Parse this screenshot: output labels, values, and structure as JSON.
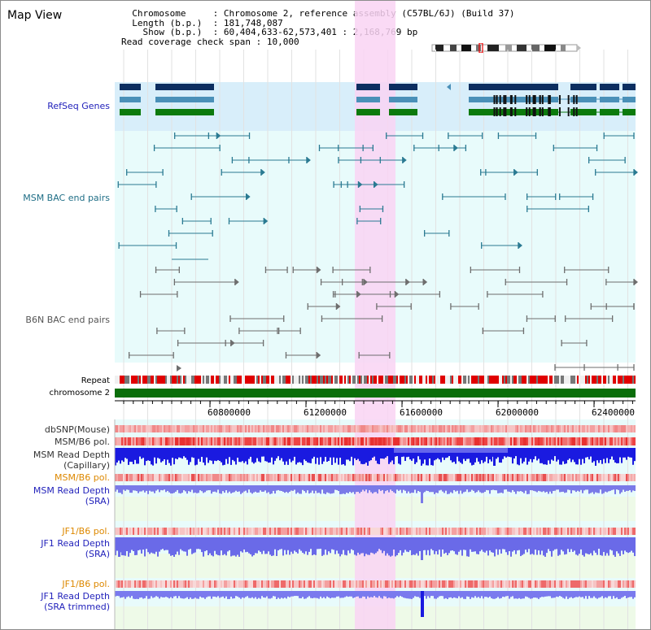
{
  "page": {
    "title": "Map View"
  },
  "info": {
    "chromosome_label": "Chromosome",
    "chromosome_value": "Chromosome 2, reference assembly (C57BL/6J) (Build 37)",
    "length_label": "Length (b.p.)",
    "length_value": "181,748,087",
    "show_label": "Show (b.p.)",
    "show_value": "60,404,633-62,573,401 : 2,168,769 bp",
    "coverage_label": "Read coverage check span",
    "coverage_value": "10,000"
  },
  "tracks": {
    "refseq": "RefSeq Genes",
    "msm_bac": "MSM BAC end pairs",
    "b6n_bac": "B6N BAC end pairs",
    "repeat": "Repeat",
    "chromosome": "chromosome 2",
    "dbsnp": "dbSNP(Mouse)",
    "msm_b6_pol": "MSM/B6 pol.",
    "msm_read_depth_cap_1": "MSM Read Depth",
    "msm_read_depth_cap_2": "(Capillary)",
    "msm_b6_pol_2": "MSM/B6 pol.",
    "msm_read_depth_sra_1": "MSM Read Depth",
    "msm_read_depth_sra_2": "(SRA)",
    "jf1_b6_pol": "JF1/B6 pol.",
    "jf1_read_depth_sra_1": "JF1 Read Depth",
    "jf1_read_depth_sra_2": "(SRA)",
    "jf1_b6_pol_2": "JF1/B6 pol.",
    "jf1_read_depth_trim_1": "JF1 Read Depth",
    "jf1_read_depth_trim_2": "(SRA trimmed)"
  },
  "axis": {
    "ticks": [
      "60800000",
      "61200000",
      "61600000",
      "62000000",
      "62400000"
    ]
  },
  "colors": {
    "highlight": "#f9d4f3",
    "refseq_bg": "#d8eefa",
    "track_bg": "#e8fbfb",
    "gene_dark": "#0c2e60",
    "gene_mid": "#4a90b8",
    "gene_green": "#0c7a0c",
    "msm_bac": "#2a7a92",
    "b6n_bac": "#6e6e6e",
    "chrom_bar": "#0a6e0a",
    "label_blue": "#2222bb",
    "label_orange": "#dd8800",
    "label_grey": "#333333"
  }
}
